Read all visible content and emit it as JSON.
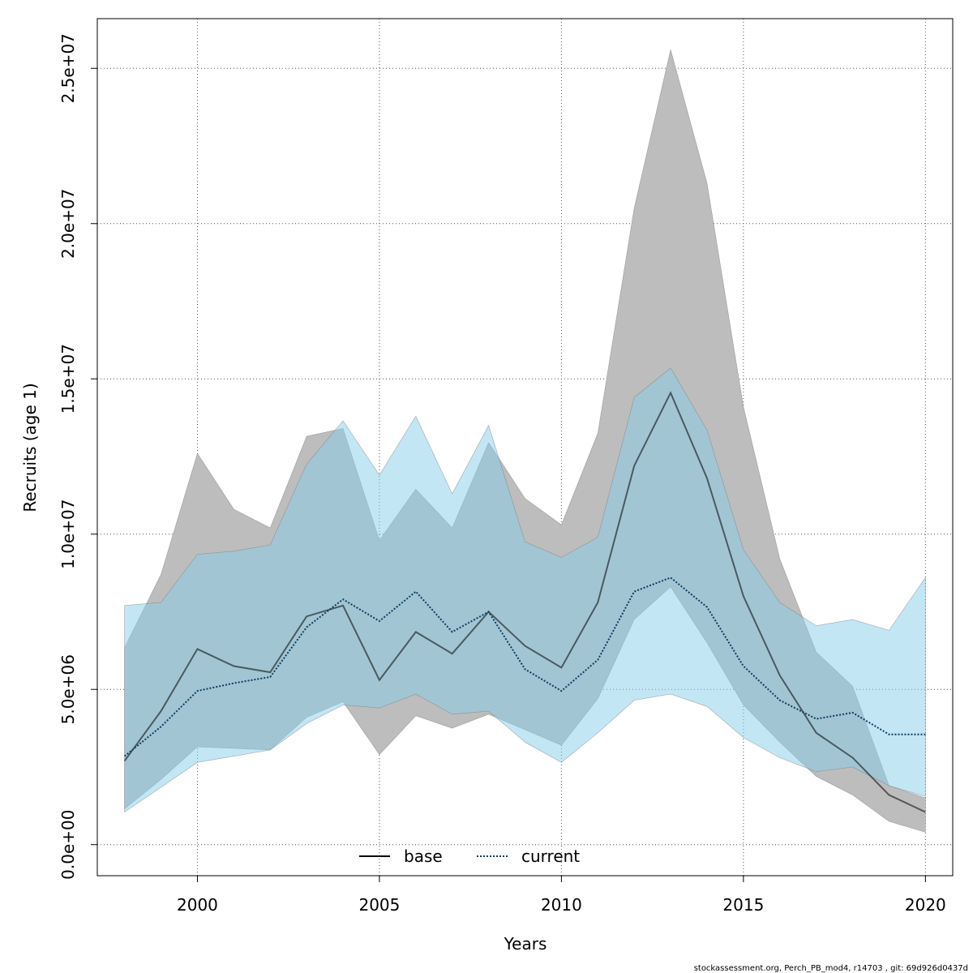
{
  "chart_data": {
    "type": "line",
    "title": "",
    "xlabel": "Years",
    "ylabel": "Recruits (age 1)",
    "xlim": [
      1997.25,
      2020.75
    ],
    "ylim": [
      -1000000,
      26600000
    ],
    "grid": true,
    "legend_position": "bottom",
    "xticks": [
      2000,
      2005,
      2010,
      2015,
      2020
    ],
    "xtick_labels": [
      "2000",
      "2005",
      "2010",
      "2015",
      "2020"
    ],
    "yticks": [
      0,
      5000000,
      10000000,
      15000000,
      20000000,
      25000000
    ],
    "ytick_labels": [
      "0.0e+00",
      "5.0e+06",
      "1.0e+07",
      "1.5e+07",
      "2.0e+07",
      "2.5e+07"
    ],
    "x": [
      1998,
      1999,
      2000,
      2001,
      2002,
      2003,
      2004,
      2005,
      2006,
      2007,
      2008,
      2009,
      2010,
      2011,
      2012,
      2013,
      2014,
      2015,
      2016,
      2017,
      2018,
      2019,
      2020
    ],
    "series": [
      {
        "name": "base",
        "color": "#000000",
        "band_color": "#bdbdbd",
        "dash": "solid",
        "values": [
          2700000,
          4300000,
          6300000,
          5750000,
          5550000,
          7350000,
          7700000,
          5300000,
          6850000,
          6150000,
          7500000,
          6400000,
          5700000,
          7800000,
          12200000,
          14550000,
          11800000,
          8000000,
          5450000,
          3600000,
          2800000,
          1600000,
          1050000
        ],
        "upper": [
          6350000,
          8700000,
          12600000,
          10800000,
          10200000,
          13150000,
          13400000,
          9800000,
          11450000,
          10200000,
          12950000,
          11150000,
          10300000,
          13250000,
          20500000,
          25600000,
          21300000,
          14100000,
          9200000,
          6200000,
          5100000,
          1900000,
          1500000
        ],
        "lower": [
          1150000,
          2100000,
          3150000,
          3100000,
          3050000,
          4100000,
          4600000,
          2900000,
          4150000,
          3750000,
          4200000,
          3700000,
          3200000,
          4700000,
          7250000,
          8300000,
          6500000,
          4500000,
          3300000,
          2200000,
          1600000,
          750000,
          400000
        ]
      },
      {
        "name": "current",
        "color": "#0b3d5e",
        "band_color": "#87ceeb",
        "dash": "dotted",
        "values": [
          2850000,
          3800000,
          4950000,
          5200000,
          5400000,
          7000000,
          7900000,
          7200000,
          8150000,
          6850000,
          7500000,
          5650000,
          4950000,
          5950000,
          8150000,
          8600000,
          7650000,
          5750000,
          4650000,
          4050000,
          4250000,
          3550000,
          3550000
        ],
        "upper": [
          7700000,
          7800000,
          9350000,
          9450000,
          9650000,
          12250000,
          13650000,
          11900000,
          13800000,
          11300000,
          13500000,
          9750000,
          9250000,
          9900000,
          14400000,
          15350000,
          13350000,
          9500000,
          7800000,
          7050000,
          7250000,
          6900000,
          8600000
        ],
        "lower": [
          1050000,
          1850000,
          2650000,
          2850000,
          3050000,
          3900000,
          4500000,
          4400000,
          4850000,
          4200000,
          4300000,
          3300000,
          2650000,
          3600000,
          4650000,
          4850000,
          4450000,
          3450000,
          2800000,
          2350000,
          2500000,
          1900000,
          1550000
        ]
      }
    ],
    "legend": {
      "entries": [
        "base",
        "current"
      ]
    },
    "credit": "stockassessment.org, Perch_PB_mod4, r14703 , git: 69d926d0437d"
  }
}
